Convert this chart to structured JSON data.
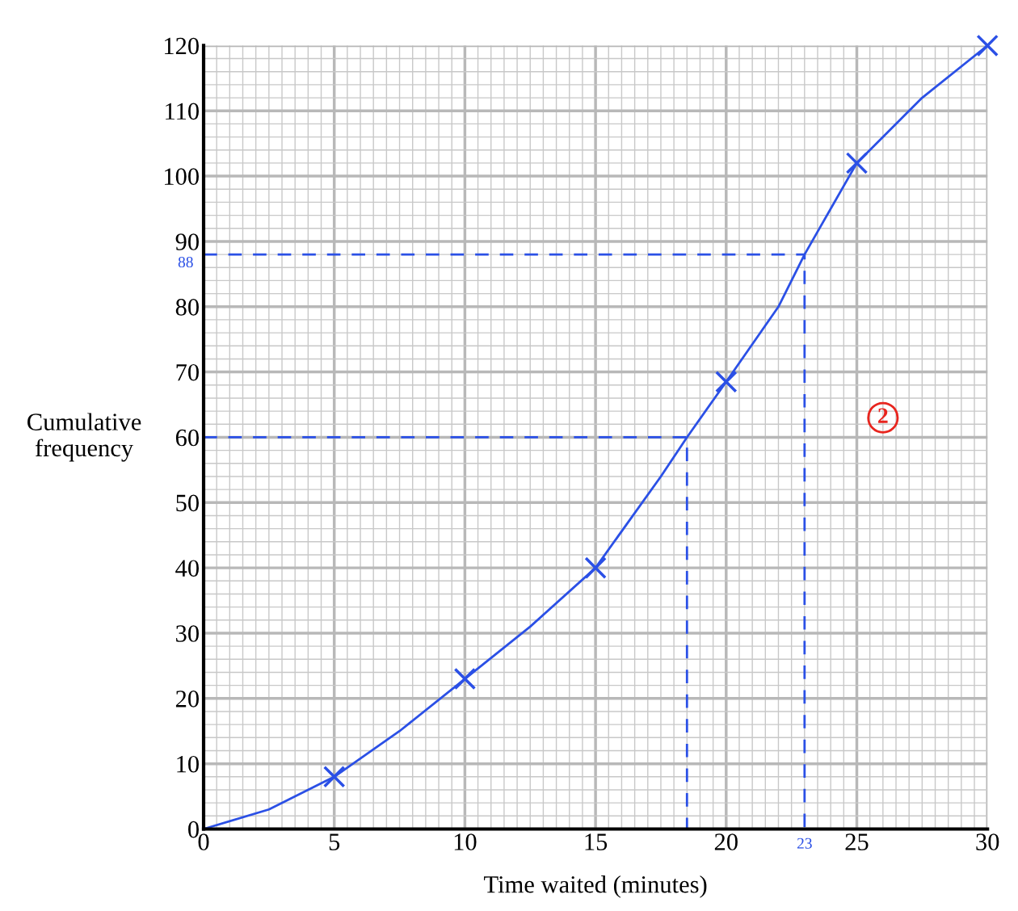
{
  "chart_data": {
    "type": "line",
    "xlabel": "Time waited (minutes)",
    "ylabel": "Cumulative\nfrequency",
    "xlim": [
      0,
      30
    ],
    "ylim": [
      0,
      120
    ],
    "xticks": [
      0,
      5,
      10,
      15,
      20,
      25,
      30
    ],
    "yticks": [
      0,
      10,
      20,
      30,
      40,
      50,
      60,
      70,
      80,
      90,
      100,
      110,
      120
    ],
    "grid": true,
    "series": [
      {
        "color": "#2b50e6",
        "marker": "none",
        "line_style": "solid",
        "x": [
          0,
          2.5,
          5,
          7.5,
          10,
          12.5,
          15,
          17.5,
          18.5,
          20,
          22,
          23,
          25,
          27.5,
          30
        ],
        "values": [
          0,
          3,
          8,
          15,
          23,
          31,
          40,
          54,
          60,
          68.5,
          80,
          88,
          102,
          112,
          120
        ]
      },
      {
        "type": "scatter",
        "color": "#2b50e6",
        "marker": "cross",
        "x": [
          5,
          10,
          15,
          20,
          25,
          30
        ],
        "values": [
          8,
          23,
          40,
          68.5,
          102,
          120
        ]
      },
      {
        "color": "#2b50e6",
        "marker": "none",
        "line_style": "dashed",
        "x": [
          0,
          23,
          23
        ],
        "values": [
          88,
          88,
          0
        ]
      },
      {
        "color": "#2b50e6",
        "marker": "none",
        "line_style": "dashed",
        "x": [
          0,
          18.5,
          18.5
        ],
        "values": [
          60,
          60,
          0
        ]
      }
    ],
    "annotations": [
      {
        "text": "88",
        "x": 0,
        "y": 88
      },
      {
        "text": "23",
        "x": 23,
        "y": 0
      },
      "2"
    ]
  }
}
